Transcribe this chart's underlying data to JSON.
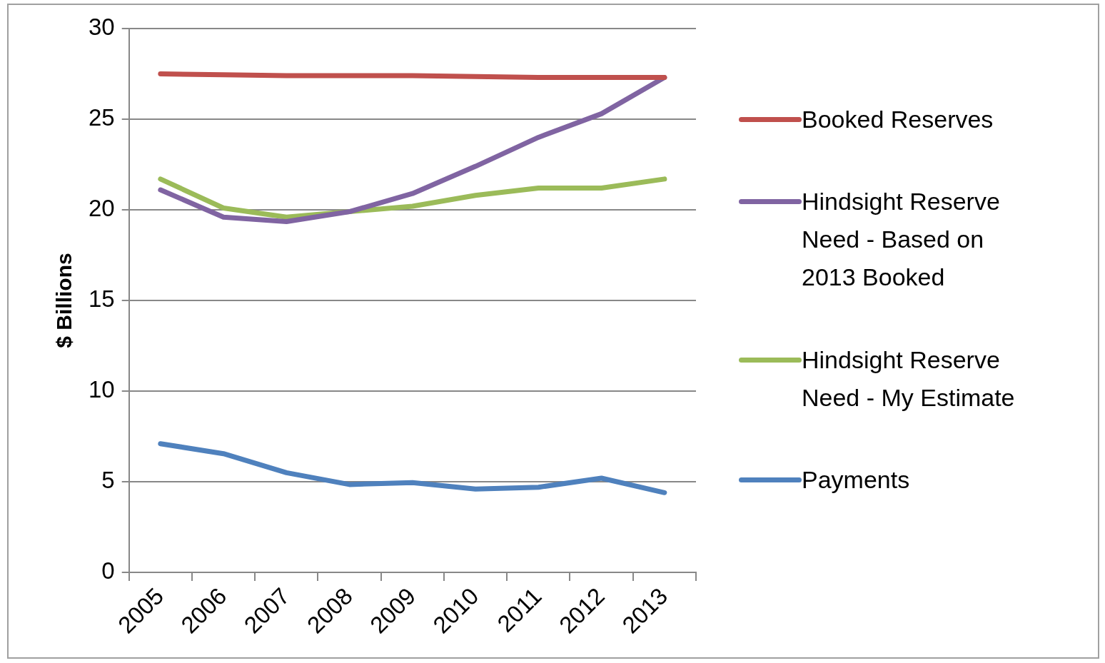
{
  "chart_data": {
    "type": "line",
    "ylabel": "$ Billions",
    "categories": [
      "2005",
      "2006",
      "2007",
      "2008",
      "2009",
      "2010",
      "2011",
      "2012",
      "2013"
    ],
    "ylim": [
      0,
      30
    ],
    "yticks": [
      0,
      5,
      10,
      15,
      20,
      25,
      30
    ],
    "grid": "y",
    "legend": "right",
    "marker": "none",
    "line_style": "solid",
    "series": [
      {
        "name": "Booked Reserves",
        "color": "#c0504d",
        "values": [
          27.5,
          27.45,
          27.4,
          27.4,
          27.4,
          27.35,
          27.3,
          27.3,
          27.3
        ]
      },
      {
        "name": "Hindsight Reserve Need - Based on 2013 Booked",
        "color": "#8064a2",
        "values": [
          21.1,
          19.6,
          19.35,
          19.9,
          20.9,
          22.4,
          24.0,
          25.3,
          27.3
        ]
      },
      {
        "name": "Hindsight Reserve Need - My Estimate",
        "color": "#9bbb59",
        "values": [
          21.7,
          20.1,
          19.6,
          19.9,
          20.2,
          20.8,
          21.2,
          21.2,
          21.7
        ]
      },
      {
        "name": "Payments",
        "color": "#4f81bd",
        "values": [
          7.1,
          6.55,
          5.5,
          4.85,
          4.95,
          4.6,
          4.7,
          5.2,
          4.4
        ]
      }
    ]
  }
}
